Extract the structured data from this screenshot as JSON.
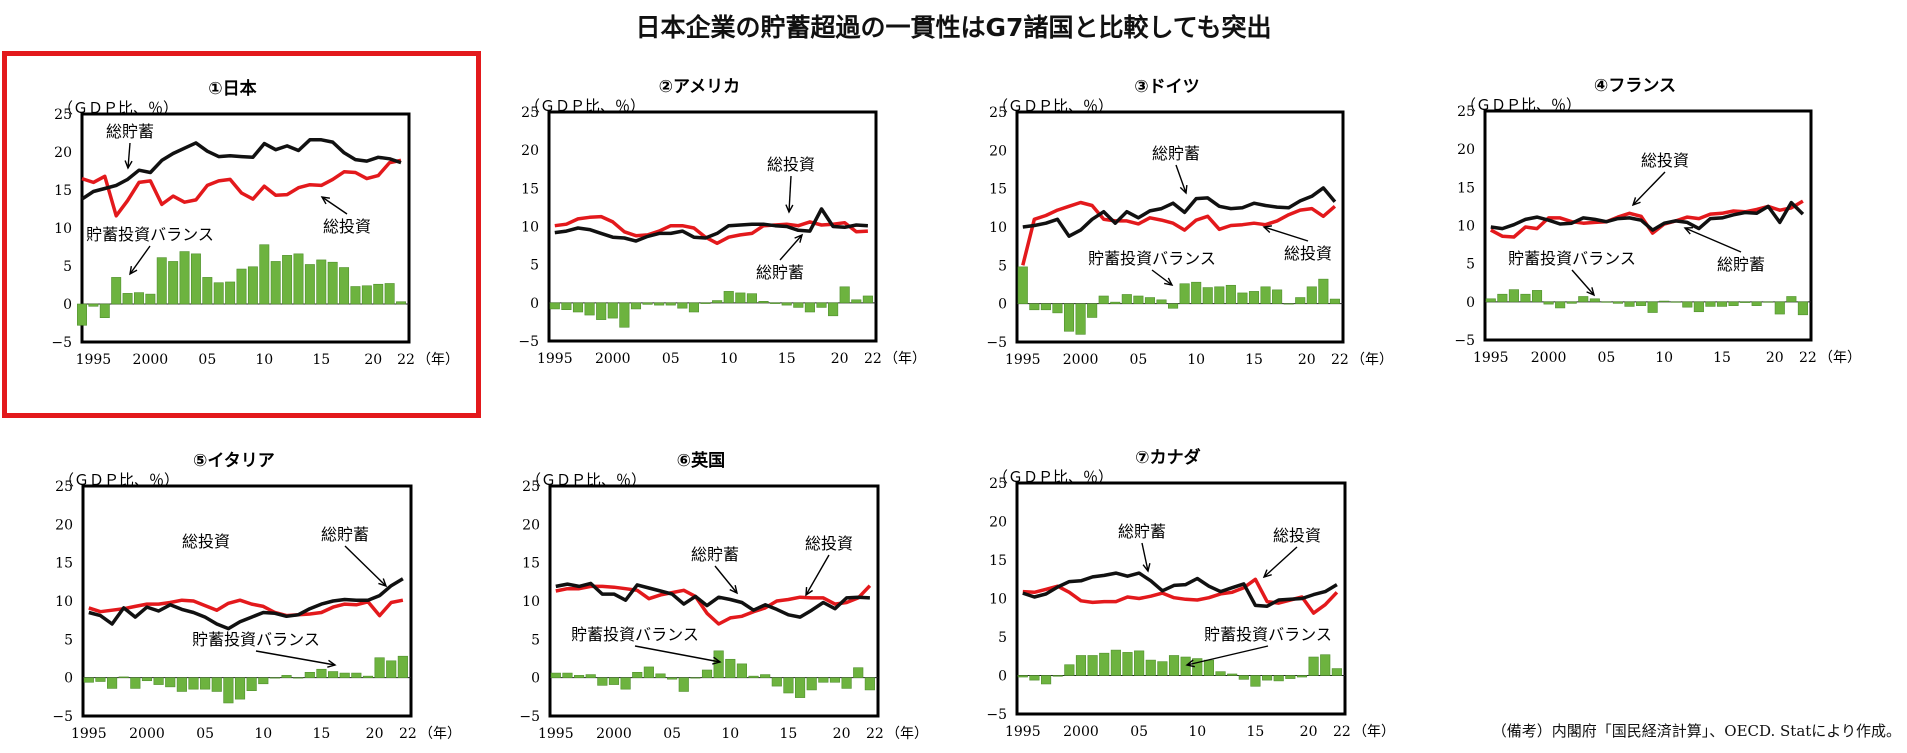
{
  "title": "日本企業の貯蓄超過の一貫性はG7諸国と比較しても突出",
  "source_note": "（備考）内閣府「国民経済計算」、OECD. Statにより作成。",
  "highlight_color": "#e3191c",
  "colors": {
    "savings": "#111111",
    "investment": "#e3191c",
    "balance": "#6db33f"
  },
  "chart_data": [
    {
      "type": "line",
      "title": "①日本",
      "unit_label": "（ＧＤＰ比、％）",
      "year_unit": "（年）",
      "x_tick_labels": [
        "1995",
        "2000",
        "05",
        "10",
        "15",
        "20",
        "22"
      ],
      "ylim": [
        -5,
        25
      ],
      "y_ticks": [
        -5,
        0,
        5,
        10,
        15,
        20,
        25
      ],
      "x": [
        1994,
        1995,
        1996,
        1997,
        1998,
        1999,
        2000,
        2001,
        2002,
        2003,
        2004,
        2005,
        2006,
        2007,
        2008,
        2009,
        2010,
        2011,
        2012,
        2013,
        2014,
        2015,
        2016,
        2017,
        2018,
        2019,
        2020,
        2021,
        2022
      ],
      "series": [
        {
          "name": "総貯蓄",
          "values": [
            13.8,
            14.8,
            15.2,
            15.6,
            16.4,
            17.6,
            17.3,
            18.9,
            19.8,
            20.5,
            21.2,
            20.1,
            19.4,
            19.5,
            19.4,
            19.3,
            21.1,
            20.3,
            20.8,
            20.2,
            21.6,
            21.6,
            21.3,
            19.9,
            19.0,
            18.8,
            19.3,
            19.1,
            18.6
          ]
        },
        {
          "name": "総投資",
          "values": [
            16.5,
            16.0,
            16.8,
            11.6,
            13.6,
            16.0,
            16.2,
            13.1,
            14.2,
            13.4,
            13.7,
            15.6,
            16.2,
            16.4,
            14.6,
            13.8,
            15.5,
            14.3,
            14.4,
            15.3,
            15.7,
            15.6,
            16.4,
            17.4,
            17.3,
            16.5,
            16.9,
            18.6,
            18.9
          ]
        },
        {
          "name": "貯蓄投資バランス",
          "type": "bar",
          "values": [
            -2.8,
            -0.3,
            -1.8,
            3.5,
            1.4,
            1.5,
            1.3,
            6.1,
            5.6,
            6.9,
            6.6,
            3.5,
            2.8,
            2.9,
            4.6,
            4.9,
            7.8,
            5.6,
            6.4,
            6.6,
            5.2,
            5.8,
            5.5,
            4.8,
            2.3,
            2.4,
            2.6,
            2.7,
            0.3
          ]
        }
      ],
      "annotations": [
        "総貯蓄",
        "総投資",
        "貯蓄投資バランス"
      ]
    },
    {
      "type": "line",
      "title": "②アメリカ",
      "unit_label": "（ＧＤＰ比、％）",
      "year_unit": "（年）",
      "x_tick_labels": [
        "1995",
        "2000",
        "05",
        "10",
        "15",
        "20",
        "22"
      ],
      "ylim": [
        -5,
        25
      ],
      "y_ticks": [
        -5,
        0,
        5,
        10,
        15,
        20,
        25
      ],
      "x": [
        1995,
        1996,
        1997,
        1998,
        1999,
        2000,
        2001,
        2002,
        2003,
        2004,
        2005,
        2006,
        2007,
        2008,
        2009,
        2010,
        2011,
        2012,
        2013,
        2014,
        2015,
        2016,
        2017,
        2018,
        2019,
        2020,
        2021,
        2022
      ],
      "series": [
        {
          "name": "総貯蓄",
          "values": [
            9.2,
            9.4,
            9.8,
            9.6,
            9.1,
            8.6,
            8.5,
            8.1,
            8.7,
            9.1,
            9.1,
            9.4,
            8.6,
            8.5,
            9.1,
            10.1,
            10.2,
            10.3,
            10.3,
            10.1,
            10.0,
            9.5,
            9.4,
            12.3,
            10.0,
            9.9,
            10.2,
            10.1
          ]
        },
        {
          "name": "総投資",
          "values": [
            10.1,
            10.3,
            11.0,
            11.2,
            11.3,
            10.6,
            9.3,
            8.8,
            8.9,
            9.4,
            10.1,
            10.1,
            9.8,
            8.6,
            7.8,
            8.6,
            8.9,
            9.1,
            10.1,
            10.2,
            10.3,
            10.1,
            10.6,
            10.2,
            10.3,
            10.5,
            9.3,
            9.4
          ]
        },
        {
          "name": "貯蓄投資バランス",
          "type": "bar",
          "values": [
            -0.8,
            -0.9,
            -1.2,
            -1.6,
            -2.2,
            -2.0,
            -3.2,
            -0.8,
            -0.2,
            -0.3,
            -0.3,
            -0.7,
            -1.2,
            -0.1,
            0.3,
            1.5,
            1.3,
            1.2,
            0.2,
            -0.1,
            -0.3,
            -0.6,
            -1.2,
            -0.6,
            -1.7,
            2.1,
            0.4,
            0.9
          ]
        }
      ],
      "annotations": [
        "総投資",
        "総貯蓄"
      ]
    },
    {
      "type": "line",
      "title": "③ドイツ",
      "unit_label": "（ＧＤＰ比、％）",
      "year_unit": "（年）",
      "x_tick_labels": [
        "1995",
        "2000",
        "05",
        "10",
        "15",
        "20",
        "22"
      ],
      "ylim": [
        -5,
        25
      ],
      "y_ticks": [
        -5,
        0,
        5,
        10,
        15,
        20,
        25
      ],
      "x": [
        1995,
        1996,
        1997,
        1998,
        1999,
        2000,
        2001,
        2002,
        2003,
        2004,
        2005,
        2006,
        2007,
        2008,
        2009,
        2010,
        2011,
        2012,
        2013,
        2014,
        2015,
        2016,
        2017,
        2018,
        2019,
        2020,
        2021,
        2022
      ],
      "series": [
        {
          "name": "総貯蓄",
          "values": [
            10.0,
            10.2,
            10.5,
            11.0,
            8.8,
            9.6,
            11.0,
            12.0,
            10.5,
            12.0,
            11.2,
            12.1,
            12.4,
            13.1,
            11.9,
            13.7,
            13.8,
            12.7,
            12.4,
            12.5,
            13.1,
            12.8,
            12.6,
            12.5,
            13.4,
            14.0,
            15.1,
            13.3
          ]
        },
        {
          "name": "総投資",
          "values": [
            5.0,
            11.0,
            11.5,
            12.2,
            12.7,
            13.2,
            12.8,
            11.0,
            10.8,
            10.8,
            10.4,
            11.2,
            10.9,
            10.5,
            9.6,
            10.9,
            11.4,
            9.7,
            10.2,
            10.3,
            10.5,
            10.3,
            10.8,
            11.6,
            12.2,
            12.4,
            11.4,
            12.7
          ]
        },
        {
          "name": "貯蓄投資バランス",
          "type": "bar",
          "values": [
            4.8,
            -0.8,
            -0.8,
            -1.2,
            -3.6,
            -4.0,
            -1.8,
            1.0,
            0.2,
            1.2,
            1.0,
            0.8,
            0.5,
            -0.6,
            2.6,
            2.8,
            2.1,
            2.2,
            2.4,
            1.4,
            1.6,
            2.2,
            1.8,
            0.0,
            0.8,
            2.2,
            3.2,
            0.6
          ]
        }
      ],
      "annotations": [
        "総貯蓄",
        "貯蓄投資バランス",
        "総投資"
      ]
    },
    {
      "type": "line",
      "title": "④フランス",
      "unit_label": "（ＧＤＰ比、％）",
      "year_unit": "（年）",
      "x_tick_labels": [
        "1995",
        "2000",
        "05",
        "10",
        "15",
        "20",
        "22"
      ],
      "ylim": [
        -5,
        25
      ],
      "y_ticks": [
        -5,
        0,
        5,
        10,
        15,
        20,
        25
      ],
      "x": [
        1995,
        1996,
        1997,
        1998,
        1999,
        2000,
        2001,
        2002,
        2003,
        2004,
        2005,
        2006,
        2007,
        2008,
        2009,
        2010,
        2011,
        2012,
        2013,
        2014,
        2015,
        2016,
        2017,
        2018,
        2019,
        2020,
        2021,
        2022
      ],
      "series": [
        {
          "name": "総貯蓄",
          "values": [
            9.8,
            9.6,
            10.1,
            10.8,
            11.1,
            10.7,
            10.2,
            10.3,
            11.0,
            10.8,
            10.5,
            10.9,
            11.0,
            10.7,
            9.4,
            10.3,
            10.6,
            10.4,
            9.6,
            10.9,
            11.0,
            11.4,
            11.7,
            11.6,
            12.5,
            10.4,
            13.0,
            11.5
          ]
        },
        {
          "name": "総投資",
          "values": [
            9.4,
            8.6,
            8.5,
            9.8,
            9.6,
            11.0,
            11.0,
            10.5,
            10.3,
            10.4,
            10.5,
            11.1,
            11.6,
            11.2,
            9.0,
            10.2,
            10.6,
            11.1,
            10.9,
            11.5,
            11.6,
            11.9,
            11.8,
            12.1,
            12.5,
            12.0,
            12.3,
            13.2
          ]
        },
        {
          "name": "貯蓄投資バランス",
          "type": "bar",
          "values": [
            0.4,
            1.0,
            1.6,
            1.0,
            1.5,
            -0.3,
            -0.8,
            -0.2,
            0.7,
            0.4,
            0.0,
            -0.2,
            -0.6,
            -0.5,
            -1.4,
            0.1,
            0.0,
            -0.7,
            -1.3,
            -0.6,
            -0.6,
            -0.5,
            -0.1,
            -0.5,
            0.0,
            -1.6,
            0.7,
            -1.7
          ]
        }
      ],
      "annotations": [
        "総投資",
        "貯蓄投資バランス",
        "総貯蓄"
      ]
    },
    {
      "type": "line",
      "title": "⑤イタリア",
      "unit_label": "（ＧＤＰ比、％）",
      "year_unit": "（年）",
      "x_tick_labels": [
        "1995",
        "2000",
        "05",
        "10",
        "15",
        "20",
        "22"
      ],
      "ylim": [
        -5,
        25
      ],
      "y_ticks": [
        -5,
        0,
        5,
        10,
        15,
        20,
        25
      ],
      "x": [
        1995,
        1996,
        1997,
        1998,
        1999,
        2000,
        2001,
        2002,
        2003,
        2004,
        2005,
        2006,
        2007,
        2008,
        2009,
        2010,
        2011,
        2012,
        2013,
        2014,
        2015,
        2016,
        2017,
        2018,
        2019,
        2020,
        2021,
        2022
      ],
      "series": [
        {
          "name": "総貯蓄",
          "values": [
            8.5,
            8.1,
            7.0,
            9.1,
            7.9,
            9.2,
            8.7,
            9.5,
            8.9,
            8.5,
            7.9,
            7.0,
            6.4,
            7.3,
            7.9,
            8.5,
            8.4,
            8.0,
            8.2,
            9.0,
            9.6,
            10.0,
            10.2,
            10.1,
            10.1,
            10.7,
            12.0,
            12.9
          ]
        },
        {
          "name": "総投資",
          "values": [
            9.1,
            8.6,
            8.8,
            9.0,
            9.3,
            9.6,
            9.6,
            9.8,
            10.1,
            10.0,
            9.4,
            8.8,
            9.7,
            10.1,
            9.6,
            9.3,
            8.5,
            8.1,
            8.2,
            8.3,
            8.5,
            9.2,
            9.6,
            9.5,
            9.9,
            8.1,
            9.8,
            10.1
          ]
        },
        {
          "name": "貯蓄投資バランス",
          "type": "bar",
          "values": [
            -0.6,
            -0.5,
            -1.4,
            0.1,
            -1.4,
            -0.4,
            -0.9,
            -1.2,
            -1.8,
            -1.5,
            -1.5,
            -1.8,
            -3.3,
            -2.8,
            -1.7,
            -0.8,
            0.0,
            0.3,
            0.0,
            0.7,
            1.1,
            0.8,
            0.6,
            0.6,
            0.2,
            2.6,
            2.2,
            2.8
          ]
        }
      ],
      "annotations": [
        "総投資",
        "総貯蓄",
        "貯蓄投資バランス"
      ]
    },
    {
      "type": "line",
      "title": "⑥英国",
      "unit_label": "（ＧＤＰ比、％）",
      "year_unit": "（年）",
      "x_tick_labels": [
        "1995",
        "2000",
        "05",
        "10",
        "15",
        "20",
        "22"
      ],
      "ylim": [
        -5,
        25
      ],
      "y_ticks": [
        -5,
        0,
        5,
        10,
        15,
        20,
        25
      ],
      "x": [
        1995,
        1996,
        1997,
        1998,
        1999,
        2000,
        2001,
        2002,
        2003,
        2004,
        2005,
        2006,
        2007,
        2008,
        2009,
        2010,
        2011,
        2012,
        2013,
        2014,
        2015,
        2016,
        2017,
        2018,
        2019,
        2020,
        2021,
        2022
      ],
      "series": [
        {
          "name": "総貯蓄",
          "values": [
            11.9,
            12.2,
            11.9,
            12.3,
            10.9,
            10.9,
            10.1,
            12.1,
            11.7,
            11.3,
            10.9,
            9.6,
            10.6,
            9.4,
            10.5,
            10.2,
            9.8,
            8.8,
            9.5,
            8.9,
            8.2,
            7.9,
            8.8,
            9.8,
            9.0,
            10.4,
            10.5,
            10.4
          ]
        },
        {
          "name": "総投資",
          "values": [
            11.3,
            11.6,
            11.6,
            11.9,
            11.9,
            11.8,
            11.6,
            11.4,
            10.3,
            10.8,
            11.1,
            11.4,
            10.6,
            8.4,
            7.0,
            7.8,
            8.0,
            8.6,
            9.1,
            10.0,
            10.2,
            10.5,
            10.4,
            10.4,
            9.6,
            9.8,
            10.4,
            12.0
          ]
        },
        {
          "name": "貯蓄投資バランス",
          "type": "bar",
          "values": [
            0.6,
            0.6,
            0.3,
            0.4,
            -1.0,
            -0.9,
            -1.5,
            0.7,
            1.4,
            0.5,
            -0.2,
            -1.8,
            0.0,
            1.0,
            3.5,
            2.4,
            1.8,
            0.2,
            0.4,
            -1.1,
            -2.0,
            -2.6,
            -1.6,
            -0.6,
            -0.6,
            -1.4,
            1.3,
            -1.6
          ]
        }
      ],
      "annotations": [
        "総貯蓄",
        "総投資",
        "貯蓄投資バランス"
      ]
    },
    {
      "type": "line",
      "title": "⑦カナダ",
      "unit_label": "（ＧＤＰ比、％）",
      "year_unit": "（年）",
      "x_tick_labels": [
        "1995",
        "2000",
        "05",
        "10",
        "15",
        "20",
        "22"
      ],
      "ylim": [
        -5,
        25
      ],
      "y_ticks": [
        -5,
        0,
        5,
        10,
        15,
        20,
        25
      ],
      "x": [
        1995,
        1996,
        1997,
        1998,
        1999,
        2000,
        2001,
        2002,
        2003,
        2004,
        2005,
        2006,
        2007,
        2008,
        2009,
        2010,
        2011,
        2012,
        2013,
        2014,
        2015,
        2016,
        2017,
        2018,
        2019,
        2020,
        2021,
        2022
      ],
      "series": [
        {
          "name": "総貯蓄",
          "values": [
            10.7,
            10.2,
            10.6,
            11.5,
            12.2,
            12.3,
            12.8,
            13.0,
            13.3,
            12.9,
            13.3,
            12.3,
            11.0,
            11.7,
            11.8,
            12.6,
            11.6,
            10.9,
            11.4,
            11.9,
            9.1,
            9.0,
            9.8,
            9.9,
            10.0,
            10.5,
            10.9,
            11.8
          ]
        },
        {
          "name": "総投資",
          "values": [
            10.9,
            10.8,
            11.2,
            11.6,
            10.8,
            9.7,
            9.5,
            9.6,
            9.6,
            10.2,
            10.0,
            10.3,
            10.7,
            10.1,
            9.9,
            9.8,
            10.1,
            10.6,
            10.8,
            11.4,
            12.5,
            9.6,
            9.4,
            9.8,
            10.2,
            8.1,
            9.2,
            10.8
          ]
        },
        {
          "name": "貯蓄投資バランス",
          "type": "bar",
          "values": [
            -0.2,
            -0.6,
            -1.1,
            -0.1,
            1.4,
            2.6,
            2.6,
            2.9,
            3.3,
            3.0,
            3.2,
            2.0,
            1.8,
            2.6,
            2.4,
            2.2,
            2.0,
            0.5,
            0.2,
            -0.5,
            -1.4,
            -0.6,
            -0.7,
            -0.4,
            -0.2,
            2.4,
            2.7,
            0.9
          ]
        }
      ],
      "annotations": [
        "総貯蓄",
        "総投資",
        "貯蓄投資バランス"
      ]
    }
  ]
}
